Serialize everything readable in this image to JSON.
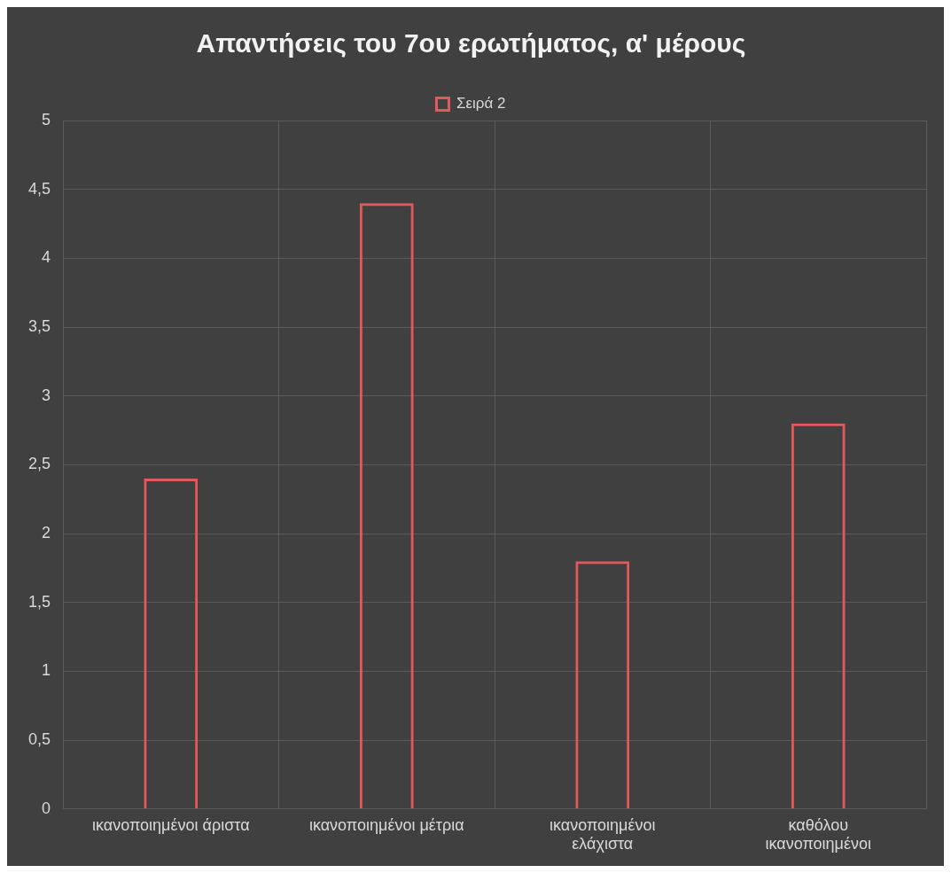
{
  "chart_data": {
    "type": "bar",
    "title": "Απαντήσεις του 7ου ερωτήματος, α' μέρους",
    "categories": [
      "ικανοποιημένοι άριστα",
      "ικανοποιημένοι μέτρια",
      "ικανοποιημένοι ελάχιστα",
      "καθόλου ικανοποιημένοι"
    ],
    "series": [
      {
        "name": "Σειρά 2",
        "color": "#e05a5a",
        "values": [
          2.4,
          4.4,
          1.8,
          2.8
        ]
      }
    ],
    "ylim": [
      0,
      5
    ],
    "yticks": [
      0,
      {
        "value": 0.5,
        "label": "0,5"
      },
      1,
      {
        "value": 1.5,
        "label": "1,5"
      },
      2,
      {
        "value": 2.5,
        "label": "2,5"
      },
      3,
      {
        "value": 3.5,
        "label": "3,5"
      },
      4,
      {
        "value": 4.5,
        "label": "4,5"
      },
      5
    ],
    "grid": true,
    "legend": "top"
  }
}
